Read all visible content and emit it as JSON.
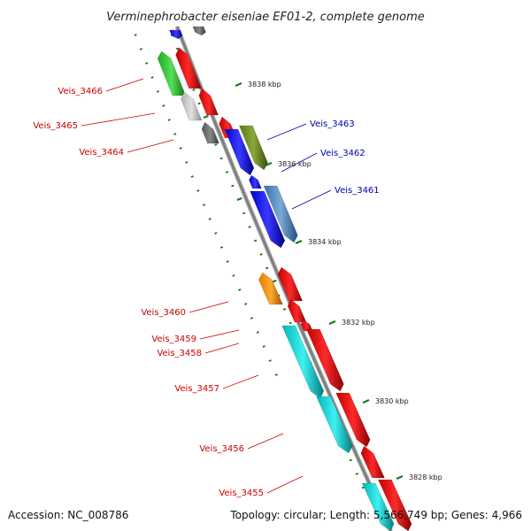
{
  "title": "Verminephrobacter eiseniae EF01-2, complete genome",
  "footer": {
    "accession": "Accession: NC_008786",
    "summary": "Topology: circular; Length: 5,566,749 bp; Genes: 4,966"
  },
  "colors": {
    "backbone": "#808080",
    "tick_ring": "#1a7a1a",
    "label_forward": "#cc0000",
    "label_reverse": "#0000aa"
  },
  "scale_labels": [
    "3838 kbp",
    "3836 kbp",
    "3834 kbp",
    "3832 kbp",
    "3830 kbp",
    "3828 kbp"
  ],
  "labels_left": [
    "Veis_3466",
    "Veis_3465",
    "Veis_3464",
    "Veis_3460",
    "Veis_3459",
    "Veis_3458",
    "Veis_3457",
    "Veis_3456",
    "Veis_3455"
  ],
  "labels_right": [
    "Veis_3463",
    "Veis_3462",
    "Veis_3461"
  ]
}
